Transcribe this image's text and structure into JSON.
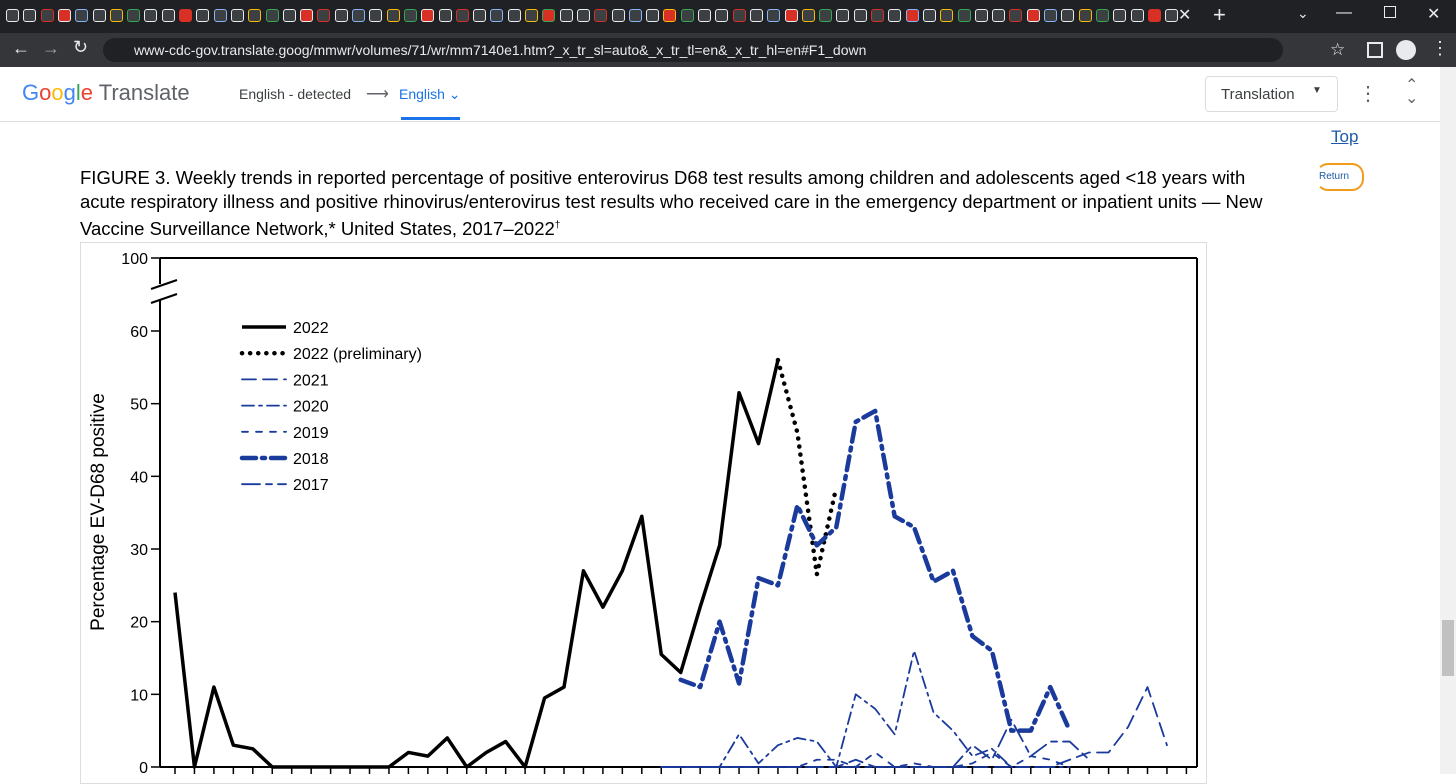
{
  "browser": {
    "url": "www-cdc-gov.translate.goog/mmwr/volumes/71/wr/mm7140e1.htm?_x_tr_sl=auto&_x_tr_tl=en&_x_tr_hl=en#F1_down"
  },
  "translate_bar": {
    "logo_google": "Google",
    "logo_translate": "Translate",
    "source_language": "English - detected",
    "target_language": "English",
    "view_mode": "Translation"
  },
  "page": {
    "top_link": "Top",
    "return_link": "Return",
    "figure_title": "FIGURE 3. Weekly trends in reported percentage of positive enterovirus D68 test results among children and adolescents aged <18 years with acute respiratory illness and positive rhinovirus/enterovirus test results who received care in the emergency department or inpatient units — New Vaccine Surveillance Network,* United States, 2017–2022",
    "figure_title_mark": "†"
  },
  "chart_data": {
    "type": "line",
    "y_label": "Percentage EV-D68 positive",
    "categories": [
      null,
      null,
      null,
      null,
      null,
      null,
      null,
      null,
      null,
      null,
      null,
      null,
      null,
      null,
      null,
      null,
      null,
      null,
      null,
      null,
      null,
      null,
      null,
      null,
      null,
      null,
      null,
      null,
      null,
      null,
      null,
      null,
      null,
      null,
      null,
      null,
      null,
      null,
      null,
      null,
      null,
      null,
      null,
      null,
      null,
      null,
      null,
      null,
      null,
      null,
      null,
      null,
      null
    ],
    "ylim": [
      0,
      100
    ],
    "yticks": [
      0,
      10,
      20,
      30,
      40,
      50,
      60,
      100
    ],
    "axis_break": [
      60,
      100
    ],
    "legend": "upper left",
    "series": [
      {
        "name": "2022",
        "color": "#000000",
        "dash": "none",
        "width": 3.5,
        "values": [
          24,
          0,
          11,
          3,
          2.5,
          0,
          0,
          0,
          0,
          0,
          0,
          0,
          2,
          1.5,
          4,
          0,
          2,
          3.5,
          0,
          9.5,
          11,
          27,
          22,
          27,
          34.5,
          15.5,
          13,
          22,
          30.5,
          51.5,
          44.5,
          56,
          null,
          null,
          null,
          null,
          null,
          null,
          null,
          null,
          null,
          null,
          null,
          null,
          null,
          null,
          null,
          null,
          null,
          null,
          null,
          null,
          null
        ]
      },
      {
        "name": "2022 (preliminary)",
        "color": "#000000",
        "dash": "0.1 8",
        "width": 4.5,
        "values": [
          null,
          null,
          null,
          null,
          null,
          null,
          null,
          null,
          null,
          null,
          null,
          null,
          null,
          null,
          null,
          null,
          null,
          null,
          null,
          null,
          null,
          null,
          null,
          null,
          null,
          null,
          null,
          null,
          null,
          null,
          null,
          56,
          46,
          26.5,
          38.5,
          null,
          null,
          null,
          null,
          null,
          null,
          null,
          null,
          null,
          null,
          null,
          null,
          null,
          null,
          null,
          null,
          null,
          null
        ]
      },
      {
        "name": "2021",
        "color": "#1a3a9c",
        "dash": "14 7",
        "width": 1.8,
        "values": [
          null,
          null,
          null,
          null,
          null,
          null,
          null,
          null,
          null,
          null,
          null,
          null,
          null,
          null,
          null,
          null,
          null,
          null,
          null,
          null,
          null,
          null,
          null,
          null,
          null,
          0,
          0,
          0,
          0,
          0,
          0,
          0,
          0,
          0,
          0,
          1,
          0,
          0,
          0,
          0,
          0,
          0,
          0,
          0,
          0,
          0,
          1,
          2,
          2,
          5.5,
          11,
          3,
          null
        ]
      },
      {
        "name": "2020",
        "color": "#1a3a9c",
        "dash": "12 5 3 5",
        "width": 1.8,
        "values": [
          null,
          null,
          null,
          null,
          null,
          null,
          null,
          null,
          null,
          null,
          null,
          null,
          null,
          null,
          null,
          null,
          null,
          null,
          null,
          null,
          null,
          null,
          null,
          null,
          null,
          0,
          0,
          0,
          0,
          4.5,
          0.5,
          3,
          4,
          3.5,
          0,
          10,
          8,
          4.5,
          16,
          7.5,
          5,
          1.5,
          2.5,
          0,
          0,
          0,
          0,
          null,
          null,
          null,
          null,
          null,
          null
        ]
      },
      {
        "name": "2019",
        "color": "#1a3a9c",
        "dash": "6 8",
        "width": 1.8,
        "values": [
          null,
          null,
          null,
          null,
          null,
          null,
          null,
          null,
          null,
          null,
          null,
          null,
          null,
          null,
          null,
          null,
          null,
          null,
          null,
          null,
          null,
          null,
          null,
          null,
          null,
          0,
          0,
          0,
          0,
          0,
          0,
          0,
          0,
          1,
          1,
          0,
          2,
          0,
          0.5,
          0,
          0,
          0.5,
          2,
          0,
          1.5,
          1,
          0,
          null,
          null,
          null,
          null,
          null,
          null
        ]
      },
      {
        "name": "2018",
        "color": "#1a3a9c",
        "dash": "14 6 3 6",
        "width": 4.5,
        "values": [
          null,
          null,
          null,
          null,
          null,
          null,
          null,
          null,
          null,
          null,
          null,
          null,
          null,
          null,
          null,
          null,
          null,
          null,
          null,
          null,
          null,
          null,
          null,
          null,
          null,
          null,
          12,
          11,
          20,
          11.5,
          26,
          25,
          36,
          30.5,
          33,
          47.5,
          49,
          34.5,
          33,
          25.5,
          27,
          18,
          16,
          5,
          5,
          11,
          5,
          null,
          null,
          null,
          null,
          null,
          null
        ]
      },
      {
        "name": "2017",
        "color": "#1a3a9c",
        "dash": "18 6 6 6",
        "width": 1.8,
        "values": [
          null,
          null,
          null,
          null,
          null,
          null,
          null,
          null,
          null,
          null,
          null,
          null,
          null,
          null,
          null,
          null,
          null,
          null,
          null,
          null,
          null,
          null,
          null,
          null,
          null,
          0,
          0,
          0,
          0,
          0,
          0,
          0,
          0,
          0,
          0,
          0,
          0,
          0,
          0,
          0,
          0,
          3,
          1,
          6.5,
          1.5,
          3.5,
          3.5,
          1,
          null,
          null,
          null,
          null,
          null
        ]
      }
    ]
  }
}
